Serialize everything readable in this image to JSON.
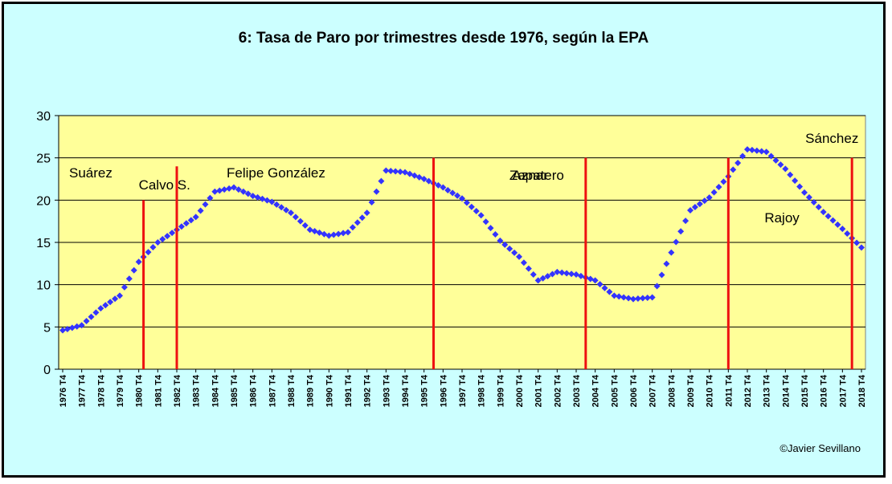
{
  "chart_data": {
    "type": "scatter",
    "title": "6: Tasa de Paro por trimestres  desde 1976, según la EPA",
    "xlabel": "",
    "ylabel": "",
    "ylim": [
      0,
      30
    ],
    "yticks": [
      0,
      5,
      10,
      15,
      20,
      25,
      30
    ],
    "xlim": [
      "1976 T4",
      "2018 T4"
    ],
    "xticks": [
      "1976 T4",
      "1977 T4",
      "1978 T4",
      "1979 T4",
      "1980 T4",
      "1981 T4",
      "1982 T4",
      "1983 T4",
      "1984 T4",
      "1985 T4",
      "1986 T4",
      "1987 T4",
      "1988 T4",
      "1989 T4",
      "1990 T4",
      "1991 T4",
      "1992 T4",
      "1993 T4",
      "1994 T4",
      "1995 T4",
      "1996 T4",
      "1997 T4",
      "1998 T4",
      "1999 T4",
      "2000 T4",
      "2001 T4",
      "2002 T4",
      "2003 T4",
      "2004 T4",
      "2005 T4",
      "2006 T4",
      "2007 T4",
      "2008 T4",
      "2009 T4",
      "2010 T4",
      "2011 T4",
      "2012 T4",
      "2013 T4",
      "2014 T4",
      "2015 T4",
      "2016 T4",
      "2017 T4",
      "2018 T4"
    ],
    "grid": "horizontal",
    "marker_color": "#3333ff",
    "series": [
      {
        "values_by_year_T4": [
          [
            "1976 T4",
            4.6
          ],
          [
            "1977 T4",
            5.2
          ],
          [
            "1978 T4",
            7.2
          ],
          [
            "1979 T4",
            8.7
          ],
          [
            "1980 T4",
            12.7
          ],
          [
            "1981 T4",
            15.0
          ],
          [
            "1982 T4",
            16.5
          ],
          [
            "1983 T4",
            18.0
          ],
          [
            "1984 T4",
            21.0
          ],
          [
            "1985 T4",
            21.5
          ],
          [
            "1986 T4",
            20.5
          ],
          [
            "1987 T4",
            19.8
          ],
          [
            "1988 T4",
            18.5
          ],
          [
            "1989 T4",
            16.5
          ],
          [
            "1990 T4",
            15.8
          ],
          [
            "1991 T4",
            16.2
          ],
          [
            "1992 T4",
            18.5
          ],
          [
            "1993 T4",
            23.5
          ],
          [
            "1994 T4",
            23.3
          ],
          [
            "1995 T4",
            22.5
          ],
          [
            "1996 T4",
            21.5
          ],
          [
            "1997 T4",
            20.2
          ],
          [
            "1998 T4",
            18.2
          ],
          [
            "1999 T4",
            15.2
          ],
          [
            "2000 T4",
            13.3
          ],
          [
            "2001 T4",
            10.5
          ],
          [
            "2002 T4",
            11.5
          ],
          [
            "2003 T4",
            11.2
          ],
          [
            "2004 T4",
            10.5
          ],
          [
            "2005 T4",
            8.7
          ],
          [
            "2006 T4",
            8.3
          ],
          [
            "2007 T4",
            8.5
          ],
          [
            "2008 T4",
            13.8
          ],
          [
            "2009 T4",
            18.8
          ],
          [
            "2010 T4",
            20.3
          ],
          [
            "2011 T4",
            22.8
          ],
          [
            "2012 T4",
            26.0
          ],
          [
            "2013 T4",
            25.7
          ],
          [
            "2014 T4",
            23.7
          ],
          [
            "2015 T4",
            20.9
          ],
          [
            "2016 T4",
            18.6
          ],
          [
            "2017 T4",
            16.6
          ],
          [
            "2018 T4",
            14.4
          ]
        ]
      }
    ],
    "period_markers": [
      {
        "label": "Suárez",
        "x": "1976 T4",
        "line_top": null
      },
      {
        "label": "Calvo S.",
        "x": "1981 T1",
        "line_top": 20
      },
      {
        "label": "Felipe González",
        "x": "1982 T4",
        "line_top": 24
      },
      {
        "label": "Aznar",
        "x": "1996 T2",
        "line_top": 25
      },
      {
        "label": "Zapatero",
        "x": "2004 T2",
        "line_top": 25
      },
      {
        "label": "Rajoy",
        "x": "2011 T4",
        "line_top": 25
      },
      {
        "label": "Sánchez",
        "x": "2018 T2",
        "line_top": 25
      }
    ],
    "marker_line_color": "#ee1111"
  },
  "credit": "©Javier Sevillano"
}
